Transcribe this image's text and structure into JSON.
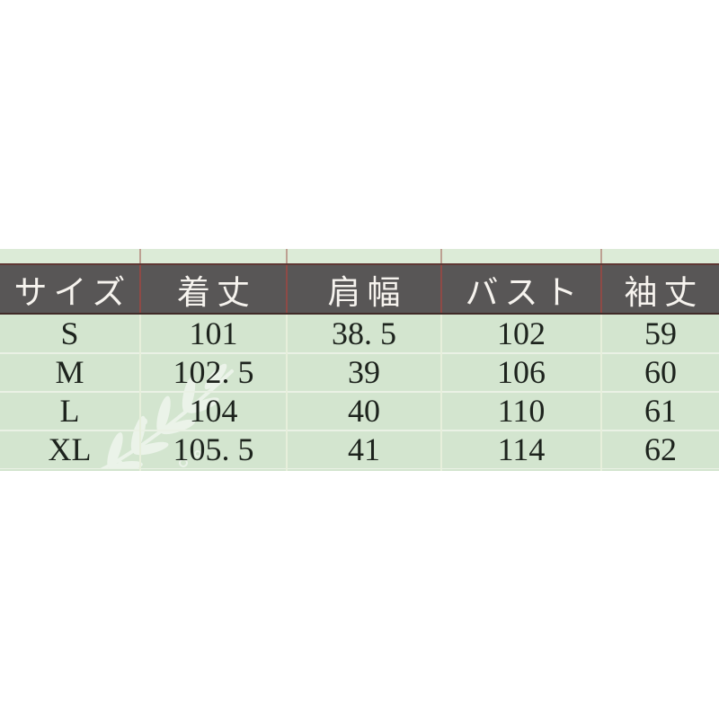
{
  "page": {
    "background": "#ffffff"
  },
  "size_chart": {
    "columns": [
      "サイズ",
      "着丈",
      "肩幅",
      "バスト",
      "袖丈"
    ],
    "rows": [
      {
        "cells": [
          "S",
          "101",
          "38. 5",
          "102",
          "59"
        ]
      },
      {
        "cells": [
          "M",
          "102. 5",
          "39",
          "106",
          "60"
        ]
      },
      {
        "cells": [
          "L",
          "104",
          "40",
          "110",
          "61"
        ]
      },
      {
        "cells": [
          "XL",
          "105. 5",
          "41",
          "114",
          "62"
        ]
      }
    ]
  },
  "chart_data": {
    "type": "table",
    "columns": [
      "サイズ",
      "着丈",
      "肩幅",
      "バスト",
      "袖丈"
    ],
    "rows": [
      [
        "S",
        101,
        38.5,
        102,
        59
      ],
      [
        "M",
        102.5,
        39,
        106,
        60
      ],
      [
        "L",
        104,
        40,
        110,
        61
      ],
      [
        "XL",
        105.5,
        41,
        114,
        62
      ]
    ],
    "title": "",
    "layout": {
      "header_position": "top",
      "grid": "on"
    }
  },
  "icons": {
    "watermark": "olive-branch-icon"
  },
  "colors": {
    "header_bg": "#585656",
    "header_text": "#f6f3ee",
    "header_separator_red": "#8e4a46",
    "header_top_rule": "#5e3734",
    "header_bottom_rule": "#402b28",
    "body_bg": "#d3e5cf",
    "top_strip_bg": "#dcebd7",
    "body_text": "#1d231d",
    "row_separator": "#eaf1e5",
    "watermark_color": "#ffffff"
  }
}
